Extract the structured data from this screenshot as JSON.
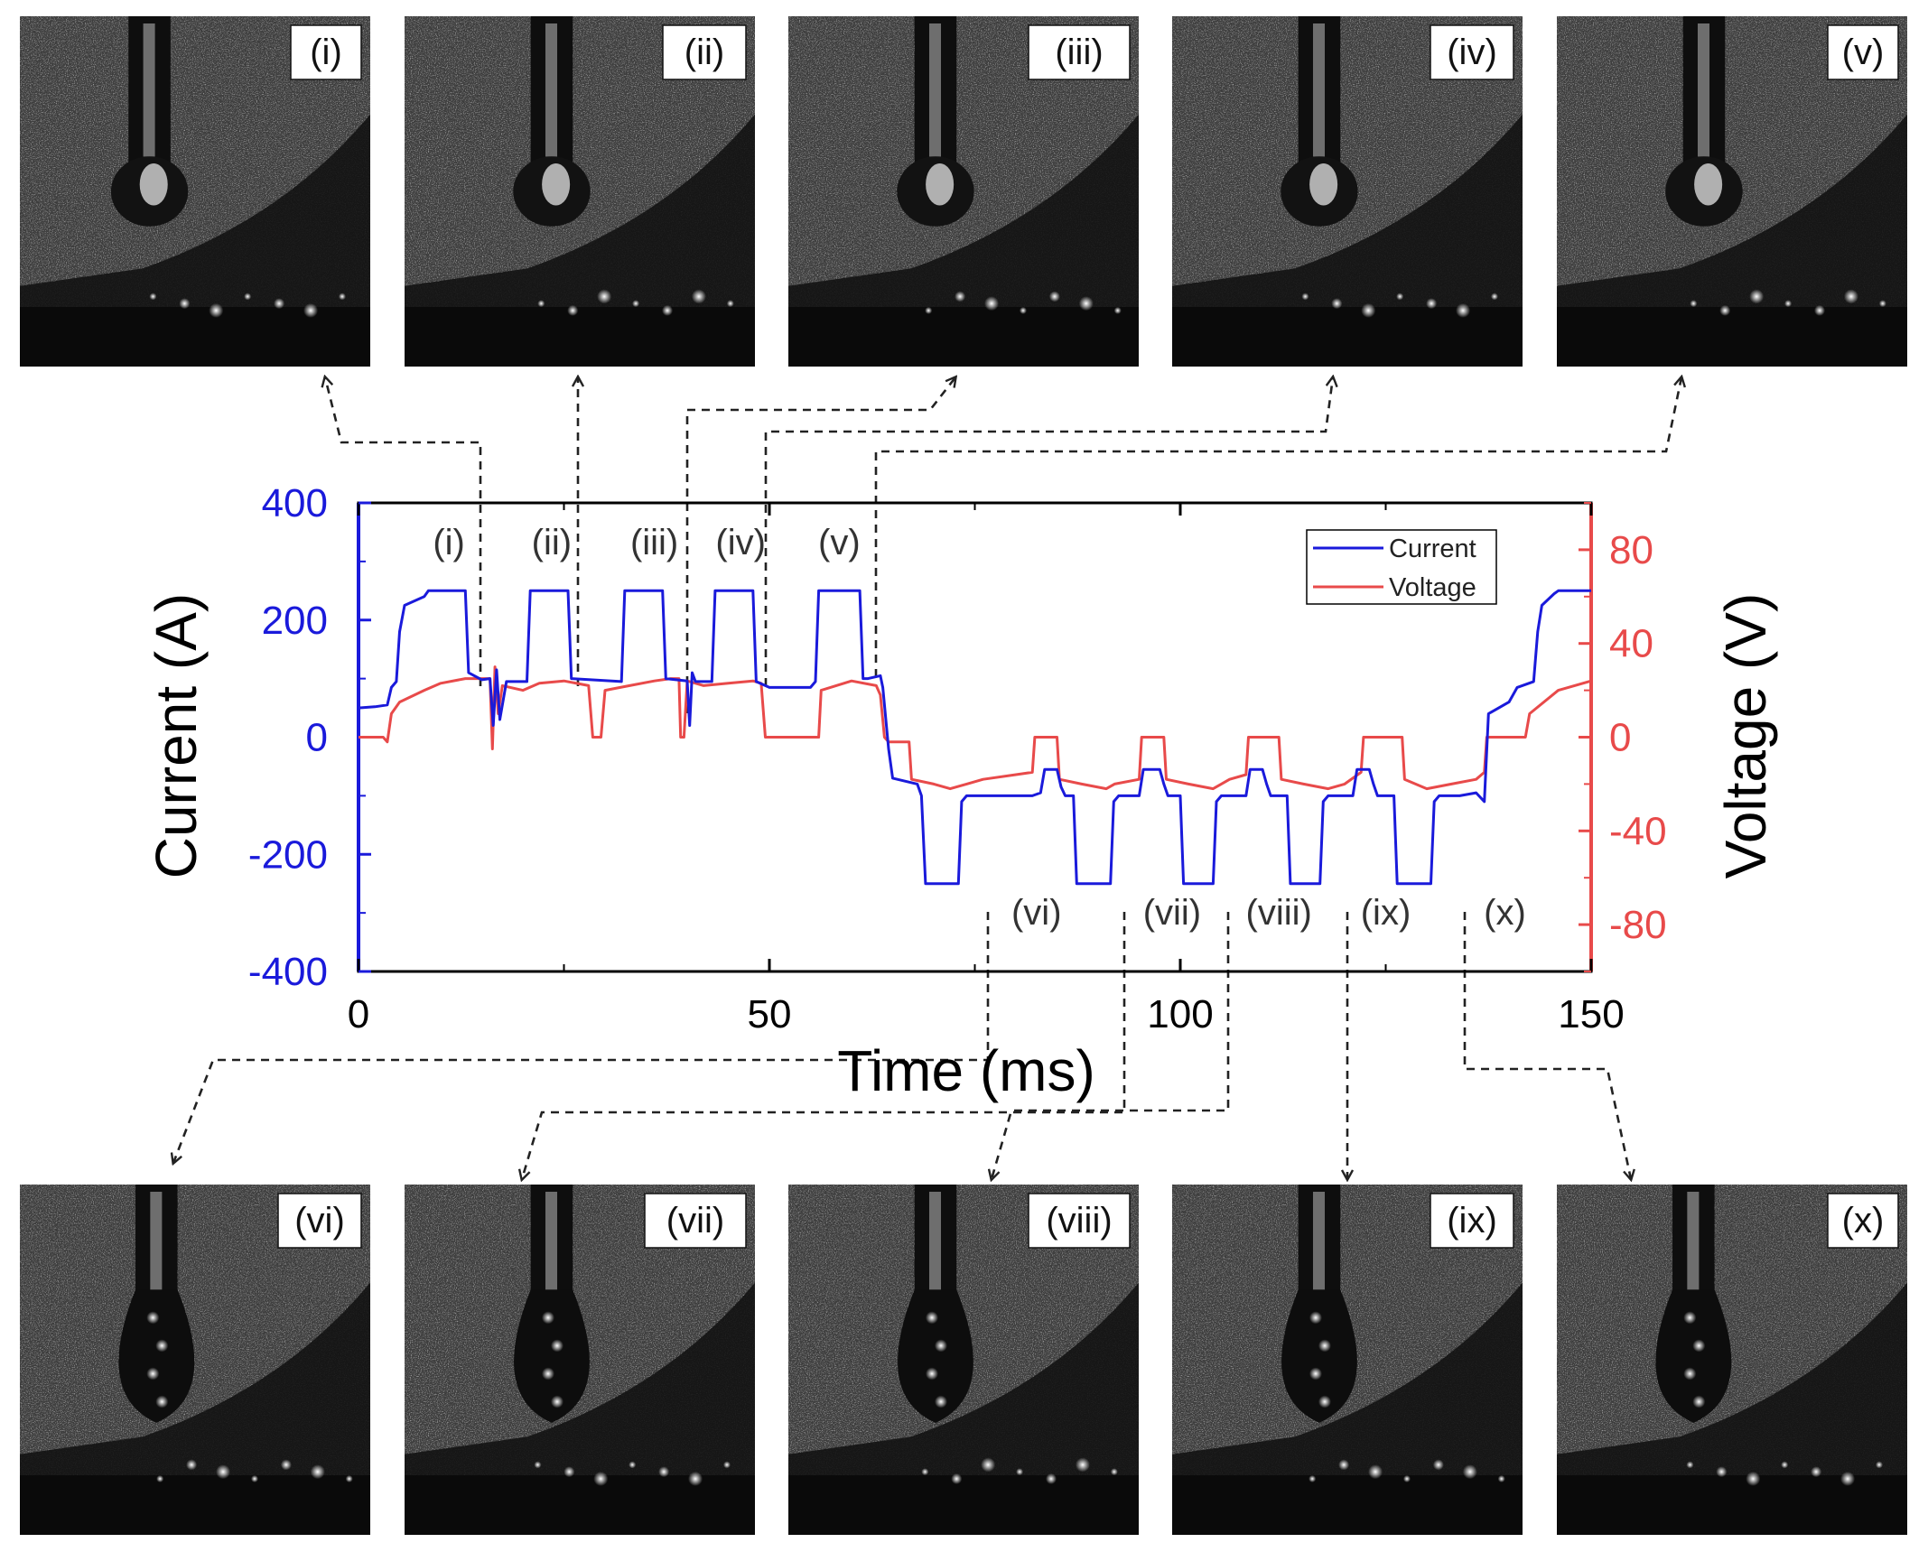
{
  "chart_data": {
    "type": "line",
    "title": "",
    "xlabel": "Time (ms)",
    "ylabel_left": "Current (A)",
    "ylabel_right": "Voltage (V)",
    "xlim": [
      0,
      150
    ],
    "ylim_left": [
      -400,
      400
    ],
    "ylim_right": [
      -100,
      100
    ],
    "x_ticks": [
      "0",
      "50",
      "100",
      "150"
    ],
    "x_tick_values": [
      0,
      50,
      100,
      150
    ],
    "y_left_ticks": [
      "400",
      "200",
      "0",
      "-200",
      "-400"
    ],
    "y_left_tick_values": [
      400,
      200,
      0,
      -200,
      -400
    ],
    "y_right_ticks": [
      "80",
      "40",
      "0",
      "-40",
      "-80"
    ],
    "y_right_tick_values": [
      80,
      40,
      0,
      -40,
      -80
    ],
    "colors": {
      "current": "#1a1adb",
      "voltage": "#e84a4a",
      "axis_left": "#1a1adb",
      "axis_right": "#e84a4a"
    },
    "legend": {
      "position": "top-right",
      "entries": [
        "Current",
        "Voltage"
      ]
    },
    "series": [
      {
        "name": "Current",
        "axis": "left",
        "points": [
          [
            0,
            50
          ],
          [
            2,
            52
          ],
          [
            3.5,
            55
          ],
          [
            4,
            85
          ],
          [
            4.6,
            95
          ],
          [
            5,
            180
          ],
          [
            5.6,
            225
          ],
          [
            8,
            240
          ],
          [
            8.5,
            250
          ],
          [
            13,
            250
          ],
          [
            13.4,
            110
          ],
          [
            15,
            98
          ],
          [
            16,
            100
          ],
          [
            16.4,
            20
          ],
          [
            16.8,
            115
          ],
          [
            17.2,
            30
          ],
          [
            18,
            95
          ],
          [
            20.5,
            95
          ],
          [
            20.9,
            250
          ],
          [
            25.5,
            250
          ],
          [
            25.9,
            100
          ],
          [
            32,
            95
          ],
          [
            32.4,
            250
          ],
          [
            37,
            250
          ],
          [
            37.4,
            100
          ],
          [
            40,
            96
          ],
          [
            40.3,
            20
          ],
          [
            40.6,
            110
          ],
          [
            41,
            95
          ],
          [
            43,
            95
          ],
          [
            43.4,
            250
          ],
          [
            48,
            250
          ],
          [
            48.4,
            95
          ],
          [
            50,
            85
          ],
          [
            55,
            85
          ],
          [
            55.6,
            95
          ],
          [
            56,
            250
          ],
          [
            61,
            250
          ],
          [
            61.4,
            100
          ],
          [
            62,
            100
          ],
          [
            63.5,
            105
          ],
          [
            63.8,
            85
          ],
          [
            64.5,
            -20
          ],
          [
            65,
            -70
          ],
          [
            68,
            -80
          ],
          [
            68.5,
            -100
          ],
          [
            69,
            -250
          ],
          [
            73,
            -250
          ],
          [
            73.4,
            -110
          ],
          [
            74,
            -100
          ],
          [
            82,
            -100
          ],
          [
            83,
            -95
          ],
          [
            83.5,
            -55
          ],
          [
            85,
            -55
          ],
          [
            85.5,
            -85
          ],
          [
            86,
            -100
          ],
          [
            87,
            -100
          ],
          [
            87.4,
            -250
          ],
          [
            91.5,
            -250
          ],
          [
            91.9,
            -110
          ],
          [
            92.5,
            -100
          ],
          [
            95,
            -100
          ],
          [
            95.5,
            -55
          ],
          [
            97.5,
            -55
          ],
          [
            98,
            -80
          ],
          [
            98.5,
            -100
          ],
          [
            100,
            -100
          ],
          [
            100.4,
            -250
          ],
          [
            104,
            -250
          ],
          [
            104.4,
            -110
          ],
          [
            105,
            -100
          ],
          [
            108,
            -100
          ],
          [
            108.5,
            -55
          ],
          [
            110,
            -55
          ],
          [
            110.5,
            -80
          ],
          [
            111,
            -100
          ],
          [
            113,
            -100
          ],
          [
            113.4,
            -250
          ],
          [
            117,
            -250
          ],
          [
            117.4,
            -110
          ],
          [
            118,
            -100
          ],
          [
            121,
            -100
          ],
          [
            121.5,
            -55
          ],
          [
            123,
            -55
          ],
          [
            123.5,
            -80
          ],
          [
            124,
            -100
          ],
          [
            126,
            -100
          ],
          [
            126.4,
            -250
          ],
          [
            130.5,
            -250
          ],
          [
            130.9,
            -110
          ],
          [
            131.5,
            -100
          ],
          [
            134,
            -100
          ],
          [
            136,
            -95
          ],
          [
            137,
            -110
          ],
          [
            137.5,
            40
          ],
          [
            140,
            60
          ],
          [
            141,
            85
          ],
          [
            143,
            95
          ],
          [
            143.5,
            180
          ],
          [
            144,
            225
          ],
          [
            145.5,
            245
          ],
          [
            146,
            250
          ],
          [
            150,
            250
          ]
        ]
      },
      {
        "name": "Voltage",
        "axis": "right",
        "points": [
          [
            0,
            0
          ],
          [
            2,
            0
          ],
          [
            3,
            0
          ],
          [
            3.5,
            -2
          ],
          [
            4,
            10
          ],
          [
            5,
            15
          ],
          [
            8,
            20
          ],
          [
            10,
            23
          ],
          [
            13,
            25
          ],
          [
            16,
            25
          ],
          [
            16.3,
            -5
          ],
          [
            16.6,
            30
          ],
          [
            17,
            10
          ],
          [
            17.5,
            22
          ],
          [
            20,
            20
          ],
          [
            22,
            23
          ],
          [
            25,
            24
          ],
          [
            28,
            22
          ],
          [
            28.5,
            0
          ],
          [
            29.5,
            0
          ],
          [
            30,
            20
          ],
          [
            33,
            22
          ],
          [
            36,
            24
          ],
          [
            38,
            25
          ],
          [
            39,
            25
          ],
          [
            39.2,
            0
          ],
          [
            39.6,
            0
          ],
          [
            40,
            24
          ],
          [
            42,
            22
          ],
          [
            45,
            23
          ],
          [
            48,
            24
          ],
          [
            49,
            23
          ],
          [
            49.5,
            0
          ],
          [
            56,
            0
          ],
          [
            56.3,
            20
          ],
          [
            60,
            24
          ],
          [
            63,
            22
          ],
          [
            63.5,
            18
          ],
          [
            64,
            0
          ],
          [
            64.5,
            -2
          ],
          [
            66,
            -2
          ],
          [
            67,
            -2
          ],
          [
            67.3,
            -18
          ],
          [
            70,
            -20
          ],
          [
            72,
            -22
          ],
          [
            74,
            -20
          ],
          [
            76,
            -18
          ],
          [
            80,
            -16
          ],
          [
            82,
            -15
          ],
          [
            82.3,
            0
          ],
          [
            85,
            0
          ],
          [
            85.3,
            -18
          ],
          [
            88,
            -20
          ],
          [
            91,
            -22
          ],
          [
            92,
            -20
          ],
          [
            95,
            -18
          ],
          [
            95.3,
            0
          ],
          [
            98,
            0
          ],
          [
            98.3,
            -18
          ],
          [
            101,
            -20
          ],
          [
            104,
            -22
          ],
          [
            106,
            -18
          ],
          [
            108,
            -16
          ],
          [
            108.3,
            0
          ],
          [
            112,
            0
          ],
          [
            112.3,
            -18
          ],
          [
            115,
            -20
          ],
          [
            118,
            -22
          ],
          [
            120,
            -20
          ],
          [
            122,
            -15
          ],
          [
            122.3,
            0
          ],
          [
            127,
            0
          ],
          [
            127.3,
            -18
          ],
          [
            130,
            -22
          ],
          [
            133,
            -20
          ],
          [
            136,
            -18
          ],
          [
            137,
            -15
          ],
          [
            137.3,
            0
          ],
          [
            140,
            0
          ],
          [
            142,
            0
          ],
          [
            142.5,
            10
          ],
          [
            146,
            20
          ],
          [
            150,
            24
          ]
        ]
      }
    ],
    "annotations": [
      "(i)",
      "(ii)",
      "(iii)",
      "(iv)",
      "(v)",
      "(vi)",
      "(vii)",
      "(viii)",
      "(ix)",
      "(x)"
    ]
  },
  "frames": {
    "top": [
      "(i)",
      "(ii)",
      "(iii)",
      "(iv)",
      "(v)"
    ],
    "bottom": [
      "(vi)",
      "(vii)",
      "(viii)",
      "(ix)",
      "(x)"
    ]
  }
}
